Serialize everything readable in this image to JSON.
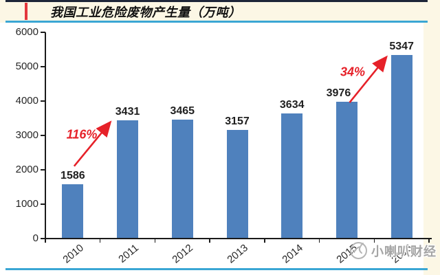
{
  "header": {
    "title": "我国工业危险废物产生量（万吨）"
  },
  "chart_data": {
    "type": "bar",
    "title": "我国工业危险废物产生量（万吨）",
    "categories": [
      "2010",
      "2011",
      "2012",
      "2013",
      "2014",
      "2015",
      "2016"
    ],
    "values": [
      1586,
      3431,
      3465,
      3157,
      3634,
      3976,
      5347
    ],
    "xlabel": "",
    "ylabel": "",
    "ylim": [
      0,
      6000
    ],
    "yticks": [
      0,
      1000,
      2000,
      3000,
      4000,
      5000,
      6000
    ],
    "grid": false,
    "legend": "none",
    "bar_color": "#4f81bd",
    "annotations": [
      {
        "label": "116%",
        "from": "2010",
        "to": "2011",
        "color": "#e62129"
      },
      {
        "label": "34%",
        "from": "2015",
        "to": "2016",
        "color": "#e62129"
      }
    ]
  },
  "watermark": {
    "text": "小喇叭财经",
    "icon": "trumpet-logo-icon"
  },
  "colors": {
    "header_bg": "#fcf7e5",
    "header_top_border": "#1e2638",
    "cyan_line": "#3aa6d4",
    "accent_bar": "#e3383e",
    "bar": "#4f81bd",
    "annotation_red": "#e62129",
    "axis": "#1a1a1a",
    "text": "#262626",
    "watermark_gray": "#a5a5a5"
  }
}
